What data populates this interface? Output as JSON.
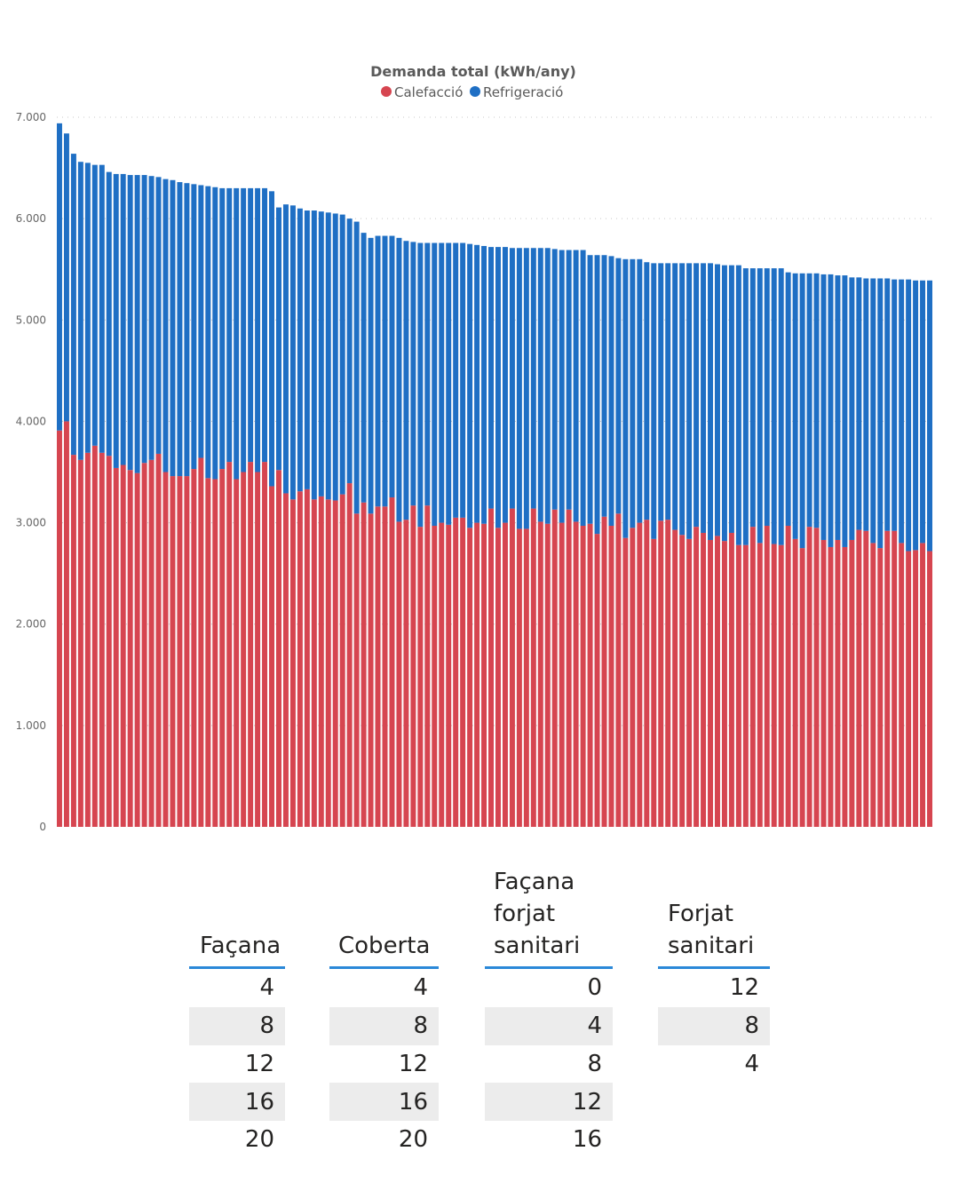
{
  "chart_data": {
    "type": "bar",
    "stacked": true,
    "title": "Demanda total (kWh/any)",
    "ylim": [
      0,
      7000
    ],
    "y_ticks": [
      "0",
      "1.000",
      "2.000",
      "3.000",
      "4.000",
      "5.000",
      "6.000",
      "7.000"
    ],
    "y_tick_values": [
      0,
      1000,
      2000,
      3000,
      4000,
      5000,
      6000,
      7000
    ],
    "grid": true,
    "legend_position": "top-center",
    "series": [
      {
        "name": "Calefacció",
        "color": "#d64550",
        "values": [
          3910,
          4000,
          3670,
          3620,
          3690,
          3760,
          3690,
          3660,
          3540,
          3570,
          3520,
          3490,
          3590,
          3620,
          3680,
          3500,
          3460,
          3460,
          3460,
          3530,
          3640,
          3440,
          3430,
          3530,
          3600,
          3430,
          3500,
          3600,
          3500,
          3600,
          3360,
          3520,
          3290,
          3230,
          3310,
          3330,
          3230,
          3260,
          3230,
          3220,
          3280,
          3390,
          3090,
          3200,
          3090,
          3160,
          3160,
          3250,
          3010,
          3030,
          3170,
          2960,
          3170,
          2970,
          3000,
          2980,
          3050,
          3050,
          2950,
          3000,
          2990,
          3140,
          2950,
          3000,
          3140,
          2940,
          2940,
          3140,
          3010,
          2990,
          3130,
          3000,
          3130,
          3010,
          2970,
          2990,
          2890,
          3060,
          2970,
          3090,
          2850,
          2950,
          3000,
          3030,
          2840,
          3020,
          3030,
          2930,
          2880,
          2840,
          2960,
          2900,
          2830,
          2870,
          2820,
          2900,
          2780,
          2780,
          2960,
          2800,
          2970,
          2790,
          2780,
          2970,
          2840,
          2750,
          2960,
          2950,
          2830,
          2760,
          2830,
          2760,
          2830,
          2930,
          2920,
          2800,
          2750,
          2920,
          2920,
          2800,
          2720,
          2730,
          2800,
          2720
        ]
      },
      {
        "name": "Refrigeració",
        "color": "#1f6fc4",
        "values": [
          3030,
          2840,
          2970,
          2940,
          2860,
          2770,
          2840,
          2800,
          2900,
          2870,
          2910,
          2940,
          2840,
          2800,
          2730,
          2890,
          2920,
          2900,
          2890,
          2810,
          2690,
          2880,
          2880,
          2770,
          2700,
          2870,
          2800,
          2700,
          2800,
          2700,
          2910,
          2590,
          2850,
          2900,
          2790,
          2750,
          2850,
          2810,
          2830,
          2830,
          2760,
          2610,
          2880,
          2660,
          2720,
          2670,
          2670,
          2580,
          2800,
          2750,
          2600,
          2800,
          2590,
          2790,
          2760,
          2780,
          2710,
          2710,
          2800,
          2740,
          2740,
          2580,
          2770,
          2720,
          2570,
          2770,
          2770,
          2570,
          2700,
          2720,
          2570,
          2690,
          2560,
          2680,
          2720,
          2650,
          2750,
          2580,
          2660,
          2520,
          2750,
          2650,
          2600,
          2540,
          2720,
          2540,
          2530,
          2630,
          2680,
          2720,
          2600,
          2660,
          2730,
          2680,
          2720,
          2640,
          2760,
          2730,
          2550,
          2710,
          2540,
          2720,
          2730,
          2500,
          2620,
          2710,
          2500,
          2510,
          2620,
          2690,
          2610,
          2680,
          2590,
          2490,
          2490,
          2610,
          2660,
          2490,
          2480,
          2600,
          2680,
          2660,
          2590,
          2670
        ]
      }
    ]
  },
  "tables": [
    {
      "header_lines": [
        "Façana"
      ],
      "values": [
        "4",
        "8",
        "12",
        "16",
        "20"
      ]
    },
    {
      "header_lines": [
        "Coberta"
      ],
      "values": [
        "4",
        "8",
        "12",
        "16",
        "20"
      ]
    },
    {
      "header_lines": [
        "Façana",
        "forjat",
        "sanitari"
      ],
      "values": [
        "0",
        "4",
        "8",
        "12",
        "16"
      ]
    },
    {
      "header_lines": [
        "Forjat",
        "sanitari"
      ],
      "values": [
        "12",
        "8",
        "4"
      ]
    }
  ]
}
